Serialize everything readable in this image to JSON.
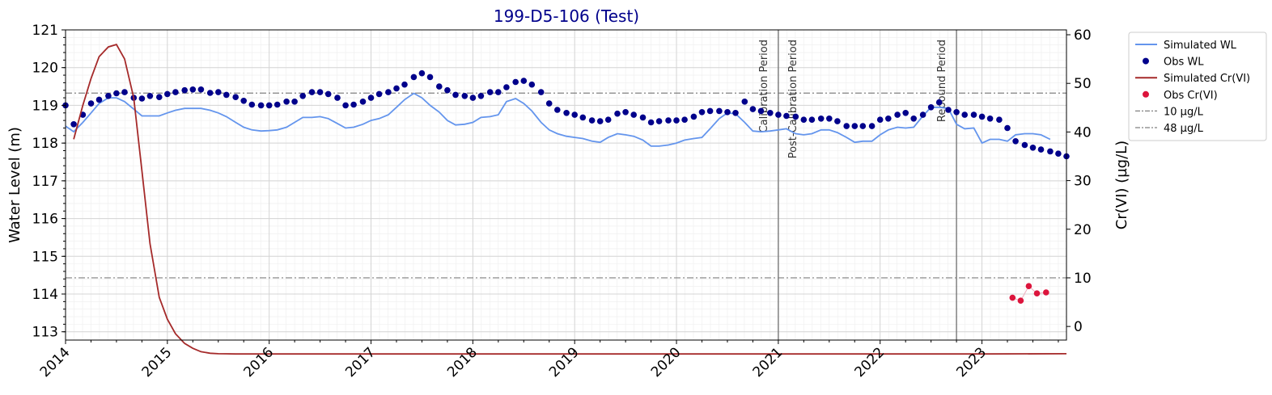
{
  "chart_data": {
    "type": "line",
    "title": "199-D5-106 (Test)",
    "title_color": "#00008B",
    "xlabel": "",
    "ylabel": "Water Level (m)",
    "y2label": "Cr(VI) (µg/L)",
    "xlim": [
      2014.0,
      2023.83
    ],
    "ylim": [
      112.78,
      121.0
    ],
    "y2lim": [
      -2.8,
      61.0
    ],
    "x_ticks": [
      "2014",
      "2015",
      "2016",
      "2017",
      "2018",
      "2019",
      "2020",
      "2021",
      "2022",
      "2023"
    ],
    "y_ticks": [
      "113",
      "114",
      "115",
      "116",
      "117",
      "118",
      "119",
      "120",
      "121"
    ],
    "y2_ticks": [
      "0",
      "10",
      "20",
      "30",
      "40",
      "50",
      "60"
    ],
    "grid": true,
    "legend_position": "outside-top-right",
    "series": [
      {
        "name": "Simulated WL",
        "kind": "line",
        "axis": "left",
        "color": "#6495ED",
        "x": [
          2014.0,
          2014.08,
          2014.17,
          2014.25,
          2014.33,
          2014.42,
          2014.5,
          2014.58,
          2014.67,
          2014.75,
          2014.83,
          2014.92,
          2015.0,
          2015.08,
          2015.17,
          2015.25,
          2015.33,
          2015.42,
          2015.5,
          2015.58,
          2015.67,
          2015.75,
          2015.83,
          2015.92,
          2016.0,
          2016.08,
          2016.17,
          2016.25,
          2016.33,
          2016.42,
          2016.5,
          2016.58,
          2016.67,
          2016.75,
          2016.83,
          2016.92,
          2017.0,
          2017.08,
          2017.17,
          2017.25,
          2017.33,
          2017.42,
          2017.5,
          2017.58,
          2017.67,
          2017.75,
          2017.83,
          2017.92,
          2018.0,
          2018.08,
          2018.17,
          2018.25,
          2018.33,
          2018.42,
          2018.5,
          2018.58,
          2018.67,
          2018.75,
          2018.83,
          2018.92,
          2019.0,
          2019.08,
          2019.17,
          2019.25,
          2019.33,
          2019.42,
          2019.5,
          2019.58,
          2019.67,
          2019.75,
          2019.83,
          2019.92,
          2020.0,
          2020.08,
          2020.17,
          2020.25,
          2020.33,
          2020.42,
          2020.5,
          2020.58,
          2020.67,
          2020.75,
          2020.83,
          2020.92,
          2021.0,
          2021.08,
          2021.17,
          2021.25,
          2021.33,
          2021.42,
          2021.5,
          2021.58,
          2021.67,
          2021.75,
          2021.83,
          2021.92,
          2022.0,
          2022.08,
          2022.17,
          2022.25,
          2022.33,
          2022.42,
          2022.5,
          2022.58,
          2022.67,
          2022.75,
          2022.83,
          2022.92,
          2023.0,
          2023.08,
          2023.17,
          2023.25,
          2023.33,
          2023.42,
          2023.5,
          2023.58,
          2023.67
        ],
        "y": [
          118.45,
          118.3,
          118.55,
          118.8,
          119.05,
          119.2,
          119.2,
          119.1,
          118.9,
          118.72,
          118.72,
          118.72,
          118.8,
          118.87,
          118.92,
          118.92,
          118.92,
          118.87,
          118.8,
          118.7,
          118.55,
          118.42,
          118.35,
          118.32,
          118.33,
          118.35,
          118.42,
          118.55,
          118.68,
          118.68,
          118.7,
          118.65,
          118.52,
          118.4,
          118.42,
          118.5,
          118.6,
          118.65,
          118.75,
          118.95,
          119.15,
          119.32,
          119.2,
          119.0,
          118.82,
          118.6,
          118.48,
          118.5,
          118.55,
          118.68,
          118.7,
          118.75,
          119.1,
          119.18,
          119.05,
          118.85,
          118.55,
          118.35,
          118.25,
          118.18,
          118.15,
          118.12,
          118.05,
          118.02,
          118.15,
          118.25,
          118.22,
          118.18,
          118.08,
          117.92,
          117.92,
          117.95,
          118.0,
          118.08,
          118.12,
          118.15,
          118.38,
          118.65,
          118.8,
          118.78,
          118.55,
          118.32,
          118.3,
          118.32,
          118.35,
          118.38,
          118.25,
          118.22,
          118.25,
          118.35,
          118.35,
          118.28,
          118.15,
          118.02,
          118.05,
          118.05,
          118.22,
          118.35,
          118.42,
          118.4,
          118.42,
          118.72,
          118.95,
          118.95,
          118.92,
          118.5,
          118.38,
          118.4,
          118.0,
          118.1,
          118.1,
          118.05,
          118.22,
          118.25,
          118.25,
          118.22,
          118.1
        ]
      },
      {
        "name": "Obs WL",
        "kind": "scatter",
        "axis": "left",
        "color": "#00008B",
        "x": [
          2014.0,
          2014.08,
          2014.17,
          2014.25,
          2014.33,
          2014.42,
          2014.5,
          2014.58,
          2014.67,
          2014.75,
          2014.83,
          2014.92,
          2015.0,
          2015.08,
          2015.17,
          2015.25,
          2015.33,
          2015.42,
          2015.5,
          2015.58,
          2015.67,
          2015.75,
          2015.83,
          2015.92,
          2016.0,
          2016.08,
          2016.17,
          2016.25,
          2016.33,
          2016.42,
          2016.5,
          2016.58,
          2016.67,
          2016.75,
          2016.83,
          2016.92,
          2017.0,
          2017.08,
          2017.17,
          2017.25,
          2017.33,
          2017.42,
          2017.5,
          2017.58,
          2017.67,
          2017.75,
          2017.83,
          2017.92,
          2018.0,
          2018.08,
          2018.17,
          2018.25,
          2018.33,
          2018.42,
          2018.5,
          2018.58,
          2018.67,
          2018.75,
          2018.83,
          2018.92,
          2019.0,
          2019.08,
          2019.17,
          2019.25,
          2019.33,
          2019.42,
          2019.5,
          2019.58,
          2019.67,
          2019.75,
          2019.83,
          2019.92,
          2020.0,
          2020.08,
          2020.17,
          2020.25,
          2020.33,
          2020.42,
          2020.5,
          2020.58,
          2020.67,
          2020.75,
          2020.83,
          2020.92,
          2021.0,
          2021.08,
          2021.17,
          2021.25,
          2021.33,
          2021.42,
          2021.5,
          2021.58,
          2021.67,
          2021.75,
          2021.83,
          2021.92,
          2022.0,
          2022.08,
          2022.17,
          2022.25,
          2022.33,
          2022.42,
          2022.5,
          2022.58,
          2022.67,
          2022.75,
          2022.83,
          2022.92,
          2023.0,
          2023.08,
          2023.17,
          2023.25,
          2023.33,
          2023.42,
          2023.5,
          2023.58,
          2023.67,
          2023.75,
          2023.83
        ],
        "y": [
          119.0,
          118.5,
          118.75,
          119.05,
          119.15,
          119.25,
          119.32,
          119.35,
          119.2,
          119.18,
          119.25,
          119.22,
          119.3,
          119.35,
          119.4,
          119.42,
          119.42,
          119.33,
          119.35,
          119.28,
          119.22,
          119.12,
          119.02,
          119.0,
          119.0,
          119.02,
          119.1,
          119.1,
          119.25,
          119.35,
          119.35,
          119.3,
          119.2,
          119.0,
          119.02,
          119.1,
          119.2,
          119.3,
          119.35,
          119.45,
          119.55,
          119.75,
          119.85,
          119.75,
          119.5,
          119.4,
          119.28,
          119.25,
          119.2,
          119.25,
          119.35,
          119.35,
          119.48,
          119.62,
          119.65,
          119.55,
          119.35,
          119.05,
          118.88,
          118.8,
          118.75,
          118.68,
          118.6,
          118.58,
          118.62,
          118.78,
          118.82,
          118.75,
          118.68,
          118.55,
          118.58,
          118.6,
          118.6,
          118.62,
          118.7,
          118.82,
          118.85,
          118.85,
          118.82,
          118.8,
          119.1,
          118.9,
          118.85,
          118.8,
          118.75,
          118.72,
          118.7,
          118.62,
          118.62,
          118.65,
          118.65,
          118.58,
          118.45,
          118.45,
          118.45,
          118.45,
          118.62,
          118.65,
          118.75,
          118.8,
          118.65,
          118.75,
          118.95,
          119.08,
          118.88,
          118.82,
          118.75,
          118.75,
          118.7,
          118.65,
          118.62,
          118.4,
          118.05,
          117.95,
          117.88,
          117.83,
          117.78,
          117.72,
          117.65
        ]
      },
      {
        "name": "Simulated Cr(VI)",
        "kind": "line",
        "axis": "right",
        "color": "#A52A2A",
        "x": [
          2014.08,
          2014.17,
          2014.25,
          2014.33,
          2014.42,
          2014.5,
          2014.58,
          2014.67,
          2014.75,
          2014.83,
          2014.92,
          2015.0,
          2015.08,
          2015.17,
          2015.25,
          2015.33,
          2015.42,
          2015.5,
          2015.58,
          2015.67,
          2016.0,
          2017.0,
          2018.0,
          2019.0,
          2020.0,
          2021.0,
          2022.0,
          2023.0,
          2023.83
        ],
        "y": [
          38.5,
          45.5,
          51.0,
          55.5,
          57.5,
          58.0,
          55.0,
          47.0,
          32.0,
          17.0,
          6.0,
          1.5,
          -1.5,
          -3.5,
          -4.5,
          -5.2,
          -5.5,
          -5.6,
          -5.62,
          -5.65,
          -5.65,
          -5.65,
          -5.65,
          -5.65,
          -5.65,
          -5.65,
          -5.65,
          -5.65,
          -5.6
        ]
      },
      {
        "name": "Obs Cr(VI)",
        "kind": "scatter",
        "axis": "right",
        "color": "#DC143C",
        "x": [
          2023.3,
          2023.38,
          2023.46,
          2023.54,
          2023.63
        ],
        "y": [
          5.9,
          5.3,
          8.3,
          6.8,
          7.0
        ]
      }
    ],
    "reference_lines": [
      {
        "name": "10 µg/L",
        "axis": "right",
        "value": 10,
        "color": "#808080"
      },
      {
        "name": "48 µg/L",
        "axis": "right",
        "value": 48,
        "color": "#808080"
      }
    ],
    "vertical_lines": [
      {
        "x": 2021.0,
        "labels": [
          "Calibration Period",
          "Post-Calibration Period"
        ]
      },
      {
        "x": 2022.75,
        "labels": [
          "Rebound Period"
        ]
      }
    ]
  }
}
